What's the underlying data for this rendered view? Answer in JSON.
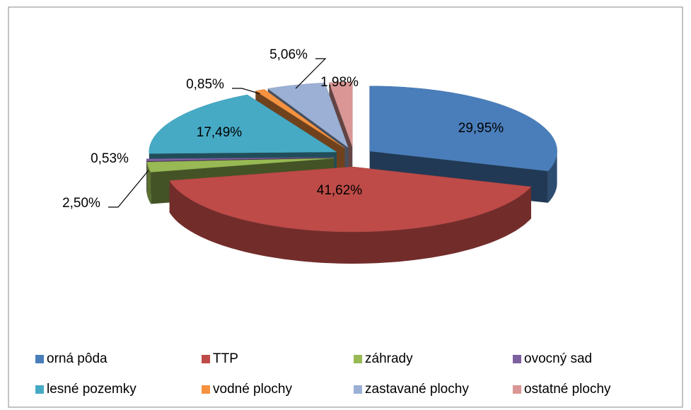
{
  "chart_data": {
    "type": "pie3d",
    "categories": [
      "orná pôda",
      "TTP",
      "záhrady",
      "ovocný sad",
      "lesné pozemky",
      "vodné plochy",
      "zastavané plochy",
      "ostatné plochy"
    ],
    "values": [
      29.95,
      41.62,
      2.5,
      0.53,
      17.49,
      0.85,
      5.06,
      1.98
    ],
    "value_labels": [
      "29,95%",
      "41,62%",
      "2,50%",
      "0,53%",
      "17,49%",
      "0,85%",
      "5,06%",
      "1,98%"
    ],
    "colors": [
      "#4a7ebb",
      "#be4b48",
      "#98b954",
      "#7d60a0",
      "#46aac5",
      "#f69240",
      "#9bb0d4",
      "#d99694"
    ],
    "legend": "bottom"
  }
}
